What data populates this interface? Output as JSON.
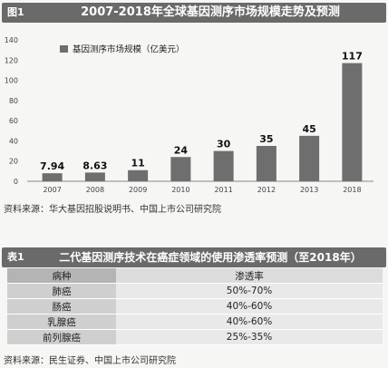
{
  "chart_data": {
    "type": "bar",
    "figure_label": "图1",
    "title": "2007-2018年全球基因测序市场规模走势及预测",
    "categories": [
      "2007",
      "2008",
      "2009",
      "2010",
      "2011",
      "2012",
      "2013",
      "2018"
    ],
    "series": [
      {
        "name": "基因测序市场规模（亿美元）",
        "values": [
          7.94,
          8.63,
          11,
          24,
          30,
          35,
          45,
          117
        ]
      }
    ],
    "data_labels": [
      "7.94",
      "8.63",
      "11",
      "24",
      "30",
      "35",
      "45",
      "117"
    ],
    "y_ticks": [
      0,
      20,
      40,
      60,
      80,
      100,
      120,
      140
    ],
    "ylim": [
      0,
      140
    ],
    "grid": false,
    "legend_position": "top-left",
    "bar_color": "#6e6e6e"
  },
  "source1": "资料来源：华大基因招股说明书、中国上市公司研究院",
  "table": {
    "figure_label": "表1",
    "title": "二代基因测序技术在癌症领域的使用渗透率预测（至2018年）",
    "header": [
      "病种",
      "渗透率"
    ],
    "rows": [
      [
        "肺癌",
        "50%-70%"
      ],
      [
        "肠癌",
        "40%-60%"
      ],
      [
        "乳腺癌",
        "40%-60%"
      ],
      [
        "前列腺癌",
        "25%-35%"
      ]
    ]
  },
  "source2": "资料来源：民生证券、中国上市公司研究院"
}
